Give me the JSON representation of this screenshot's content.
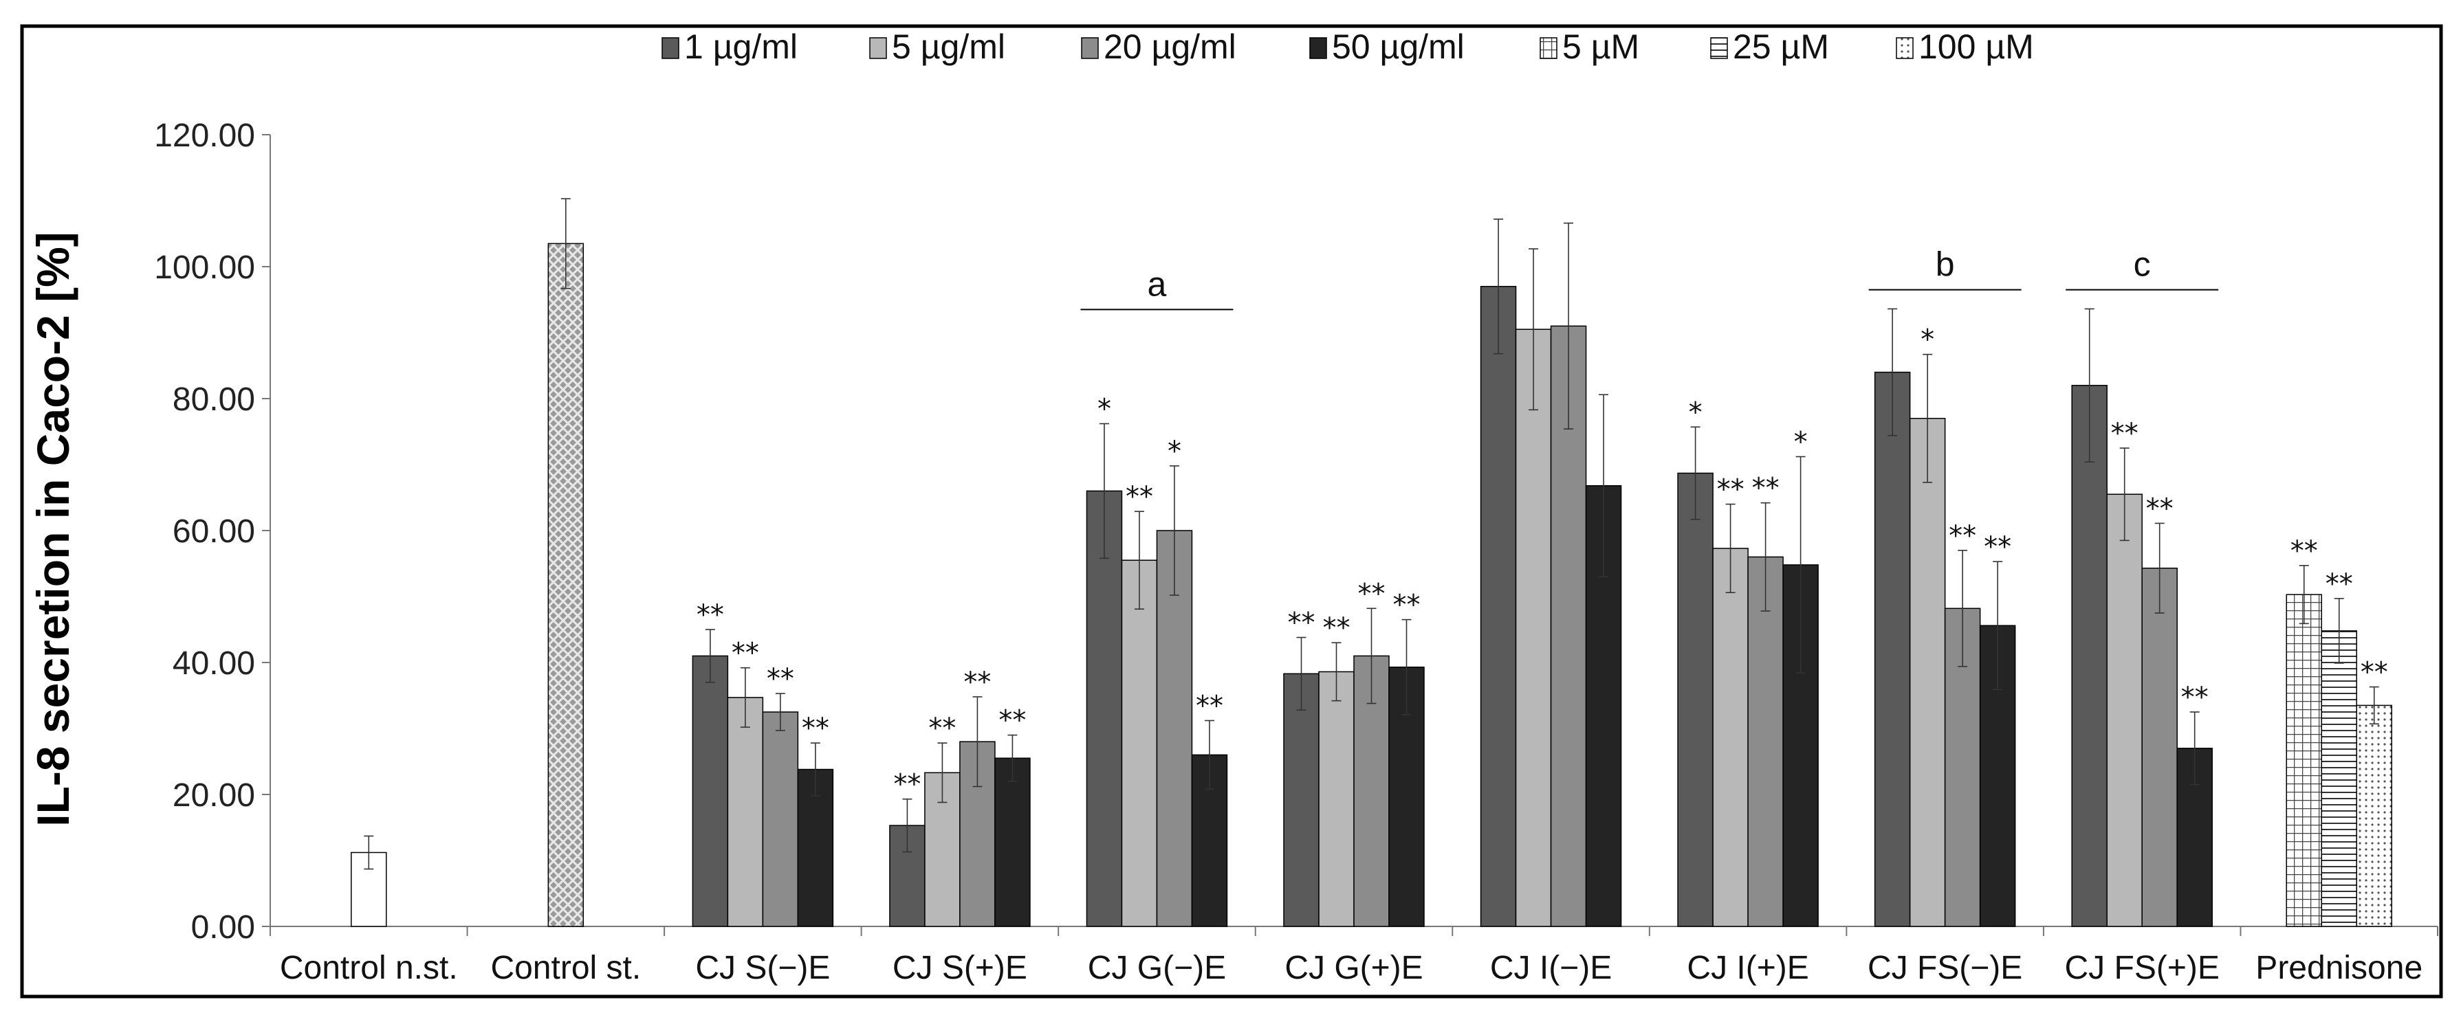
{
  "chart_data": {
    "type": "bar",
    "title": "",
    "xlabel": "",
    "ylabel": "IL-8  secretion in Caco-2 [%]",
    "ylim": [
      0,
      120
    ],
    "yticks": [
      "0.00",
      "20.00",
      "40.00",
      "60.00",
      "80.00",
      "100.00",
      "120.00"
    ],
    "grid": false,
    "legend_position": "top",
    "legend": [
      {
        "label": "1 µg/ml",
        "pattern": "solid",
        "color": "#5a5a5a"
      },
      {
        "label": "5 µg/ml",
        "pattern": "solid",
        "color": "#b8b8b8"
      },
      {
        "label": "20 µg/ml",
        "pattern": "solid",
        "color": "#8c8c8c"
      },
      {
        "label": "50 µg/ml",
        "pattern": "solid",
        "color": "#242424"
      },
      {
        "label": "5 µM",
        "pattern": "grid",
        "color": "#ffffff"
      },
      {
        "label": "25 µM",
        "pattern": "hlines",
        "color": "#ffffff"
      },
      {
        "label": "100 µM",
        "pattern": "dots",
        "color": "#ffffff"
      }
    ],
    "categories": [
      {
        "label": "Control n.st.",
        "bars": [
          {
            "value": 11.2,
            "error": 2.5,
            "fill": "white",
            "sig": ""
          }
        ]
      },
      {
        "label": "Control st.",
        "bars": [
          {
            "value": 103.5,
            "error": 6.8,
            "fill": "crosshatch",
            "sig": ""
          }
        ]
      },
      {
        "label": "CJ S(−)E",
        "bars": [
          {
            "value": 41.0,
            "error": 4.0,
            "series": 0,
            "sig": "**"
          },
          {
            "value": 34.7,
            "error": 4.5,
            "series": 1,
            "sig": "**"
          },
          {
            "value": 32.5,
            "error": 2.8,
            "series": 2,
            "sig": "**"
          },
          {
            "value": 23.8,
            "error": 4.0,
            "series": 3,
            "sig": "**"
          }
        ]
      },
      {
        "label": "CJ S(+)E",
        "bars": [
          {
            "value": 15.3,
            "error": 4.0,
            "series": 0,
            "sig": "**"
          },
          {
            "value": 23.3,
            "error": 4.5,
            "series": 1,
            "sig": "**"
          },
          {
            "value": 28.0,
            "error": 6.8,
            "series": 2,
            "sig": "**"
          },
          {
            "value": 25.5,
            "error": 3.5,
            "series": 3,
            "sig": "**"
          }
        ]
      },
      {
        "label": "CJ G(−)E",
        "bars": [
          {
            "value": 66.0,
            "error": 10.2,
            "series": 0,
            "sig": "*"
          },
          {
            "value": 55.5,
            "error": 7.4,
            "series": 1,
            "sig": "**"
          },
          {
            "value": 60.0,
            "error": 9.8,
            "series": 2,
            "sig": "*"
          },
          {
            "value": 26.0,
            "error": 5.2,
            "series": 3,
            "sig": "**"
          }
        ]
      },
      {
        "label": "CJ G(+)E",
        "bars": [
          {
            "value": 38.3,
            "error": 5.5,
            "series": 0,
            "sig": "**"
          },
          {
            "value": 38.6,
            "error": 4.4,
            "series": 1,
            "sig": "**"
          },
          {
            "value": 41.0,
            "error": 7.2,
            "series": 2,
            "sig": "**"
          },
          {
            "value": 39.3,
            "error": 7.2,
            "series": 3,
            "sig": "**"
          }
        ]
      },
      {
        "label": "CJ I(−)E",
        "bars": [
          {
            "value": 97.0,
            "error": 10.2,
            "series": 0,
            "sig": ""
          },
          {
            "value": 90.5,
            "error": 12.2,
            "series": 1,
            "sig": ""
          },
          {
            "value": 91.0,
            "error": 15.6,
            "series": 2,
            "sig": ""
          },
          {
            "value": 66.8,
            "error": 13.8,
            "series": 3,
            "sig": ""
          }
        ]
      },
      {
        "label": "CJ I(+)E",
        "bars": [
          {
            "value": 68.7,
            "error": 7.0,
            "series": 0,
            "sig": "*"
          },
          {
            "value": 57.3,
            "error": 6.7,
            "series": 1,
            "sig": "**"
          },
          {
            "value": 56.0,
            "error": 8.2,
            "series": 2,
            "sig": "**"
          },
          {
            "value": 54.8,
            "error": 16.4,
            "series": 3,
            "sig": "*"
          }
        ]
      },
      {
        "label": "CJ FS(−)E",
        "bars": [
          {
            "value": 84.0,
            "error": 9.6,
            "series": 0,
            "sig": ""
          },
          {
            "value": 77.0,
            "error": 9.7,
            "series": 1,
            "sig": "*"
          },
          {
            "value": 48.2,
            "error": 8.8,
            "series": 2,
            "sig": "**"
          },
          {
            "value": 45.6,
            "error": 9.7,
            "series": 3,
            "sig": "**"
          }
        ]
      },
      {
        "label": "CJ FS(+)E",
        "bars": [
          {
            "value": 82.0,
            "error": 11.6,
            "series": 0,
            "sig": ""
          },
          {
            "value": 65.5,
            "error": 7.0,
            "series": 1,
            "sig": "**"
          },
          {
            "value": 54.3,
            "error": 6.8,
            "series": 2,
            "sig": "**"
          },
          {
            "value": 27.0,
            "error": 5.5,
            "series": 3,
            "sig": "**"
          }
        ]
      },
      {
        "label": "Prednisone",
        "bars": [
          {
            "value": 50.3,
            "error": 4.4,
            "series": 4,
            "sig": "**"
          },
          {
            "value": 44.8,
            "error": 4.9,
            "series": 5,
            "sig": "**"
          },
          {
            "value": 33.5,
            "error": 2.8,
            "series": 6,
            "sig": "**"
          }
        ]
      }
    ],
    "brackets": [
      {
        "label": "a",
        "category": "CJ G(−)E",
        "value": 93.5
      },
      {
        "label": "b",
        "category": "CJ FS(−)E",
        "value": 96.5
      },
      {
        "label": "c",
        "category": "CJ FS(+)E",
        "value": 96.5
      }
    ]
  }
}
